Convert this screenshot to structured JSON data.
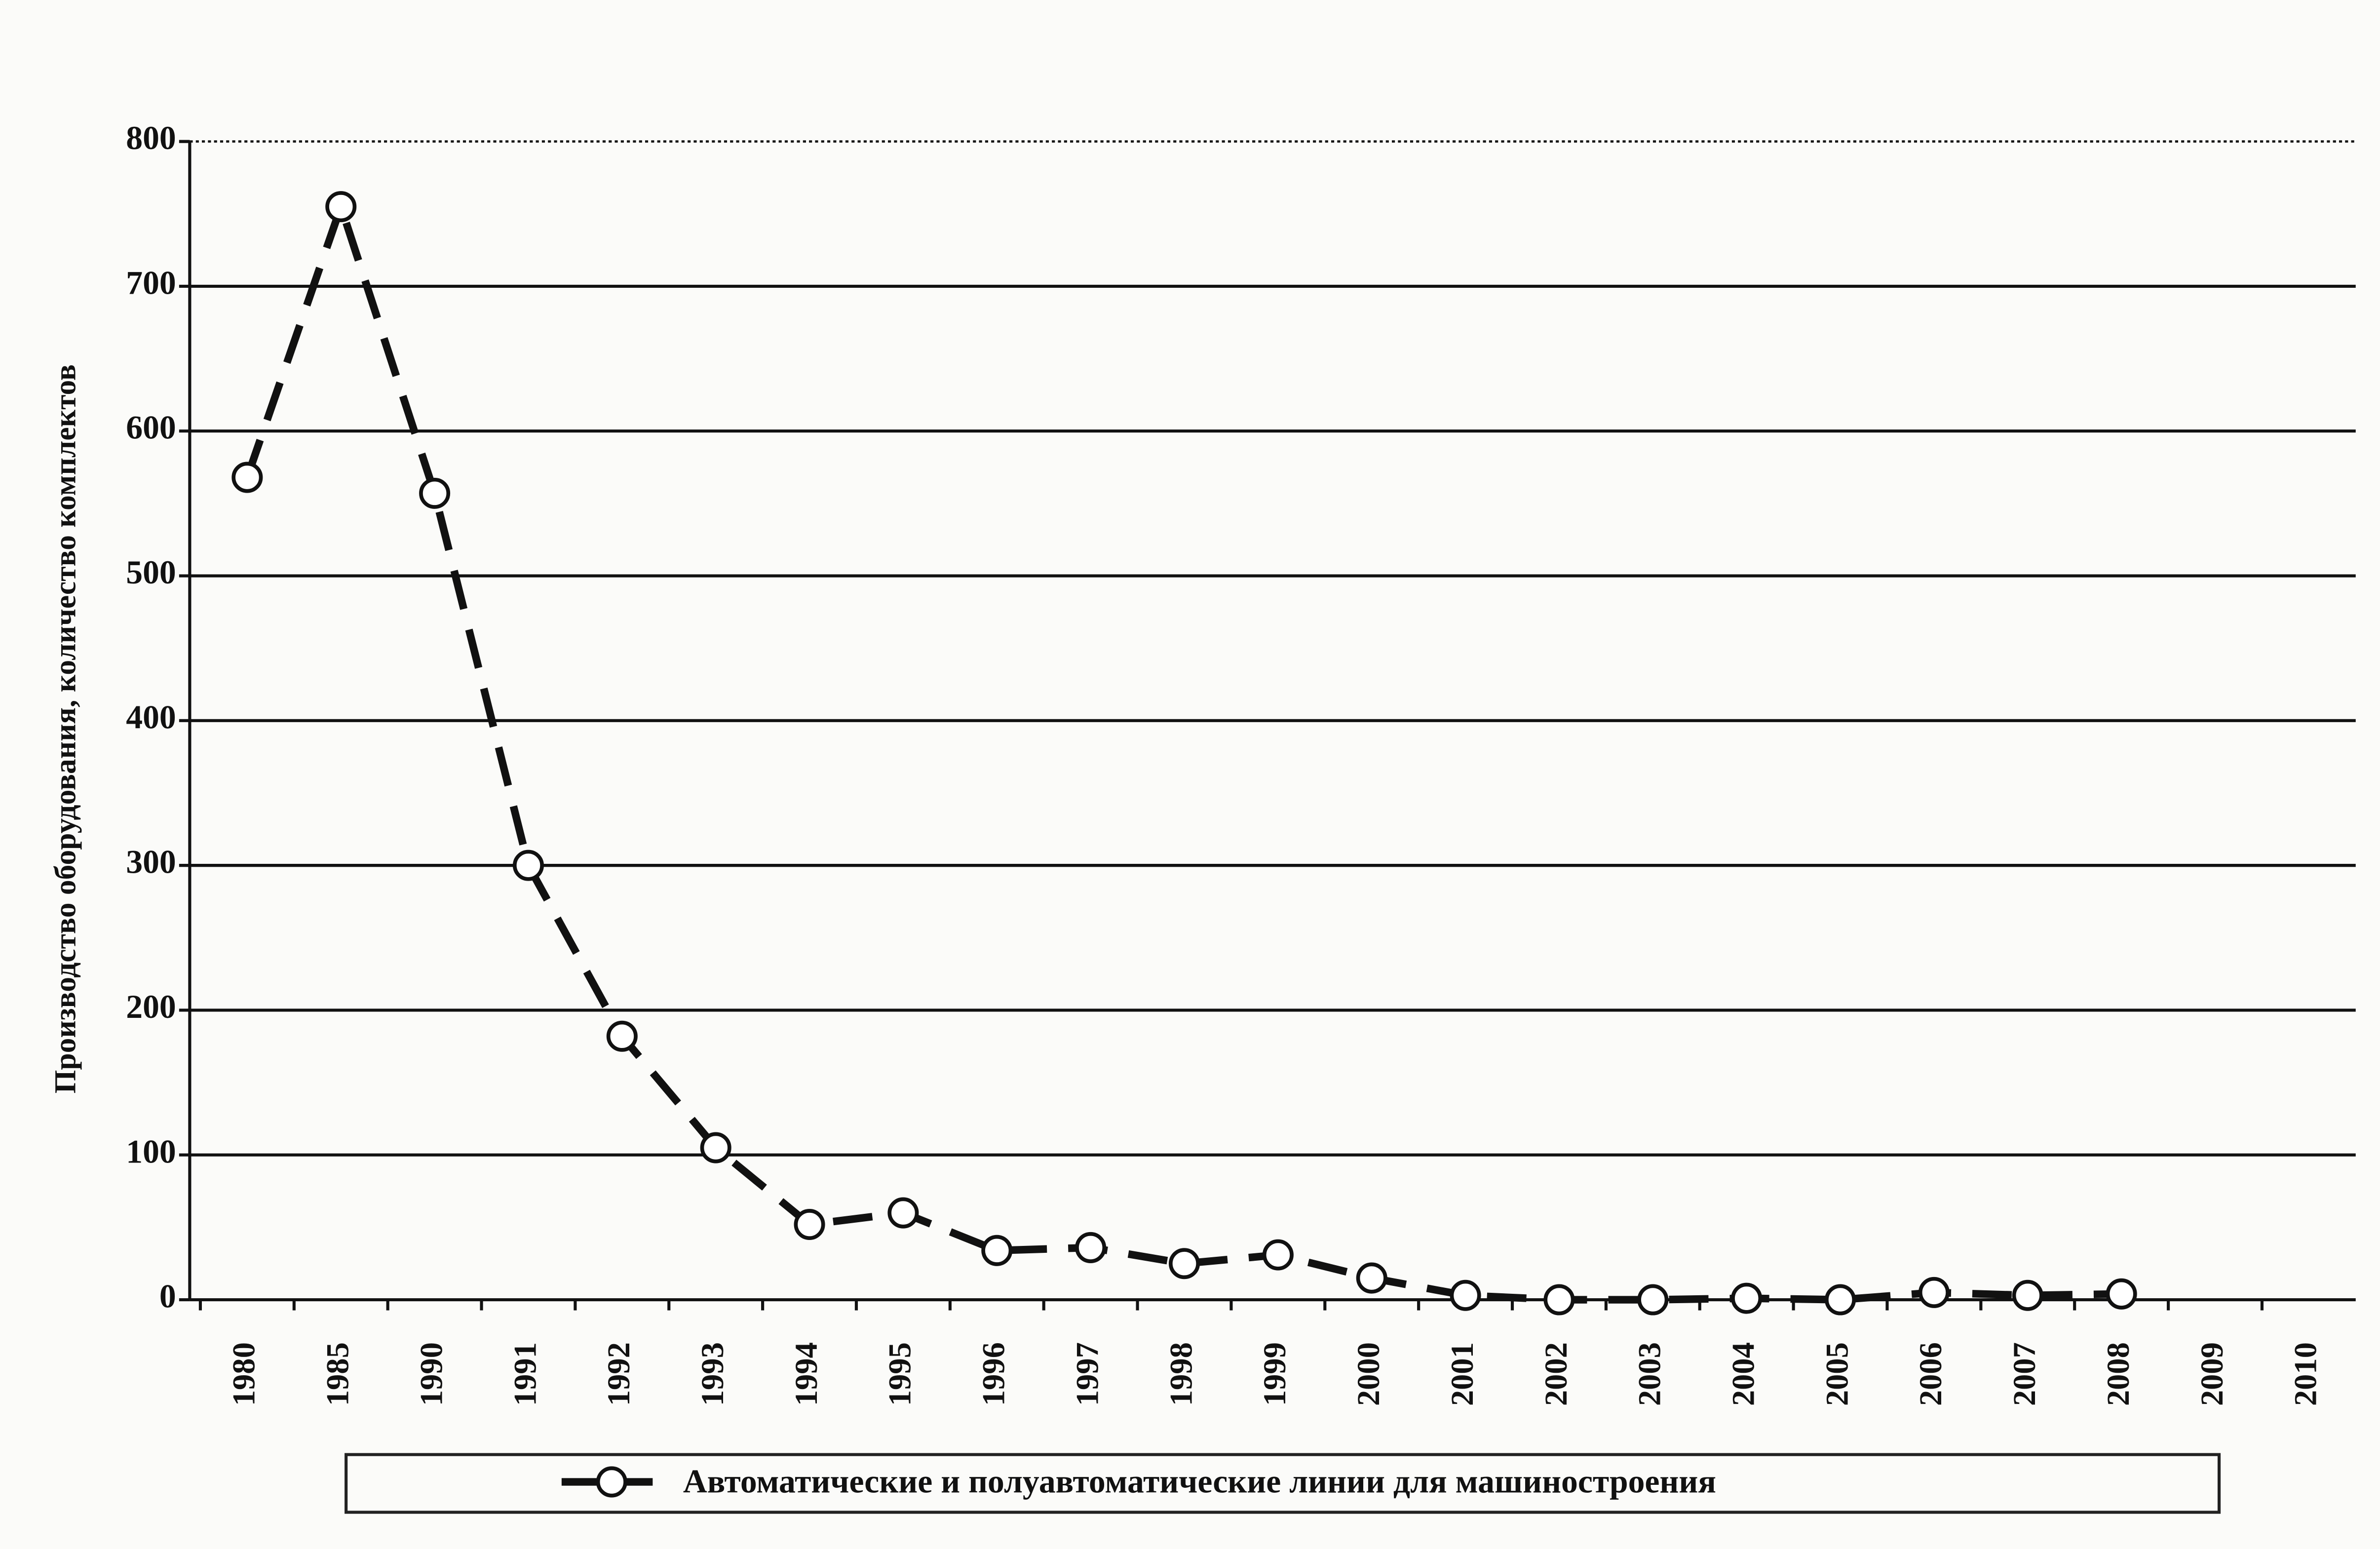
{
  "chart_data": {
    "type": "line",
    "ylabel": "Производство оборудования, количество комплектов",
    "categories": [
      "1980",
      "1985",
      "1990",
      "1991",
      "1992",
      "1993",
      "1994",
      "1995",
      "1996",
      "1997",
      "1998",
      "1999",
      "2000",
      "2001",
      "2002",
      "2003",
      "2004",
      "2005",
      "2006",
      "2007",
      "2008",
      "2009",
      "2010"
    ],
    "series": [
      {
        "name": "Автоматические и полуавтоматические линии для машиностроения",
        "color": "#111111",
        "values": [
          568,
          755,
          557,
          300,
          182,
          105,
          52,
          60,
          34,
          36,
          25,
          31,
          15,
          3,
          0,
          0,
          1,
          0,
          5,
          3,
          4,
          null,
          null
        ]
      }
    ],
    "ylim": [
      0,
      800
    ],
    "yticks": [
      0,
      100,
      200,
      300,
      400,
      500,
      600,
      700,
      800
    ],
    "grid": true
  }
}
